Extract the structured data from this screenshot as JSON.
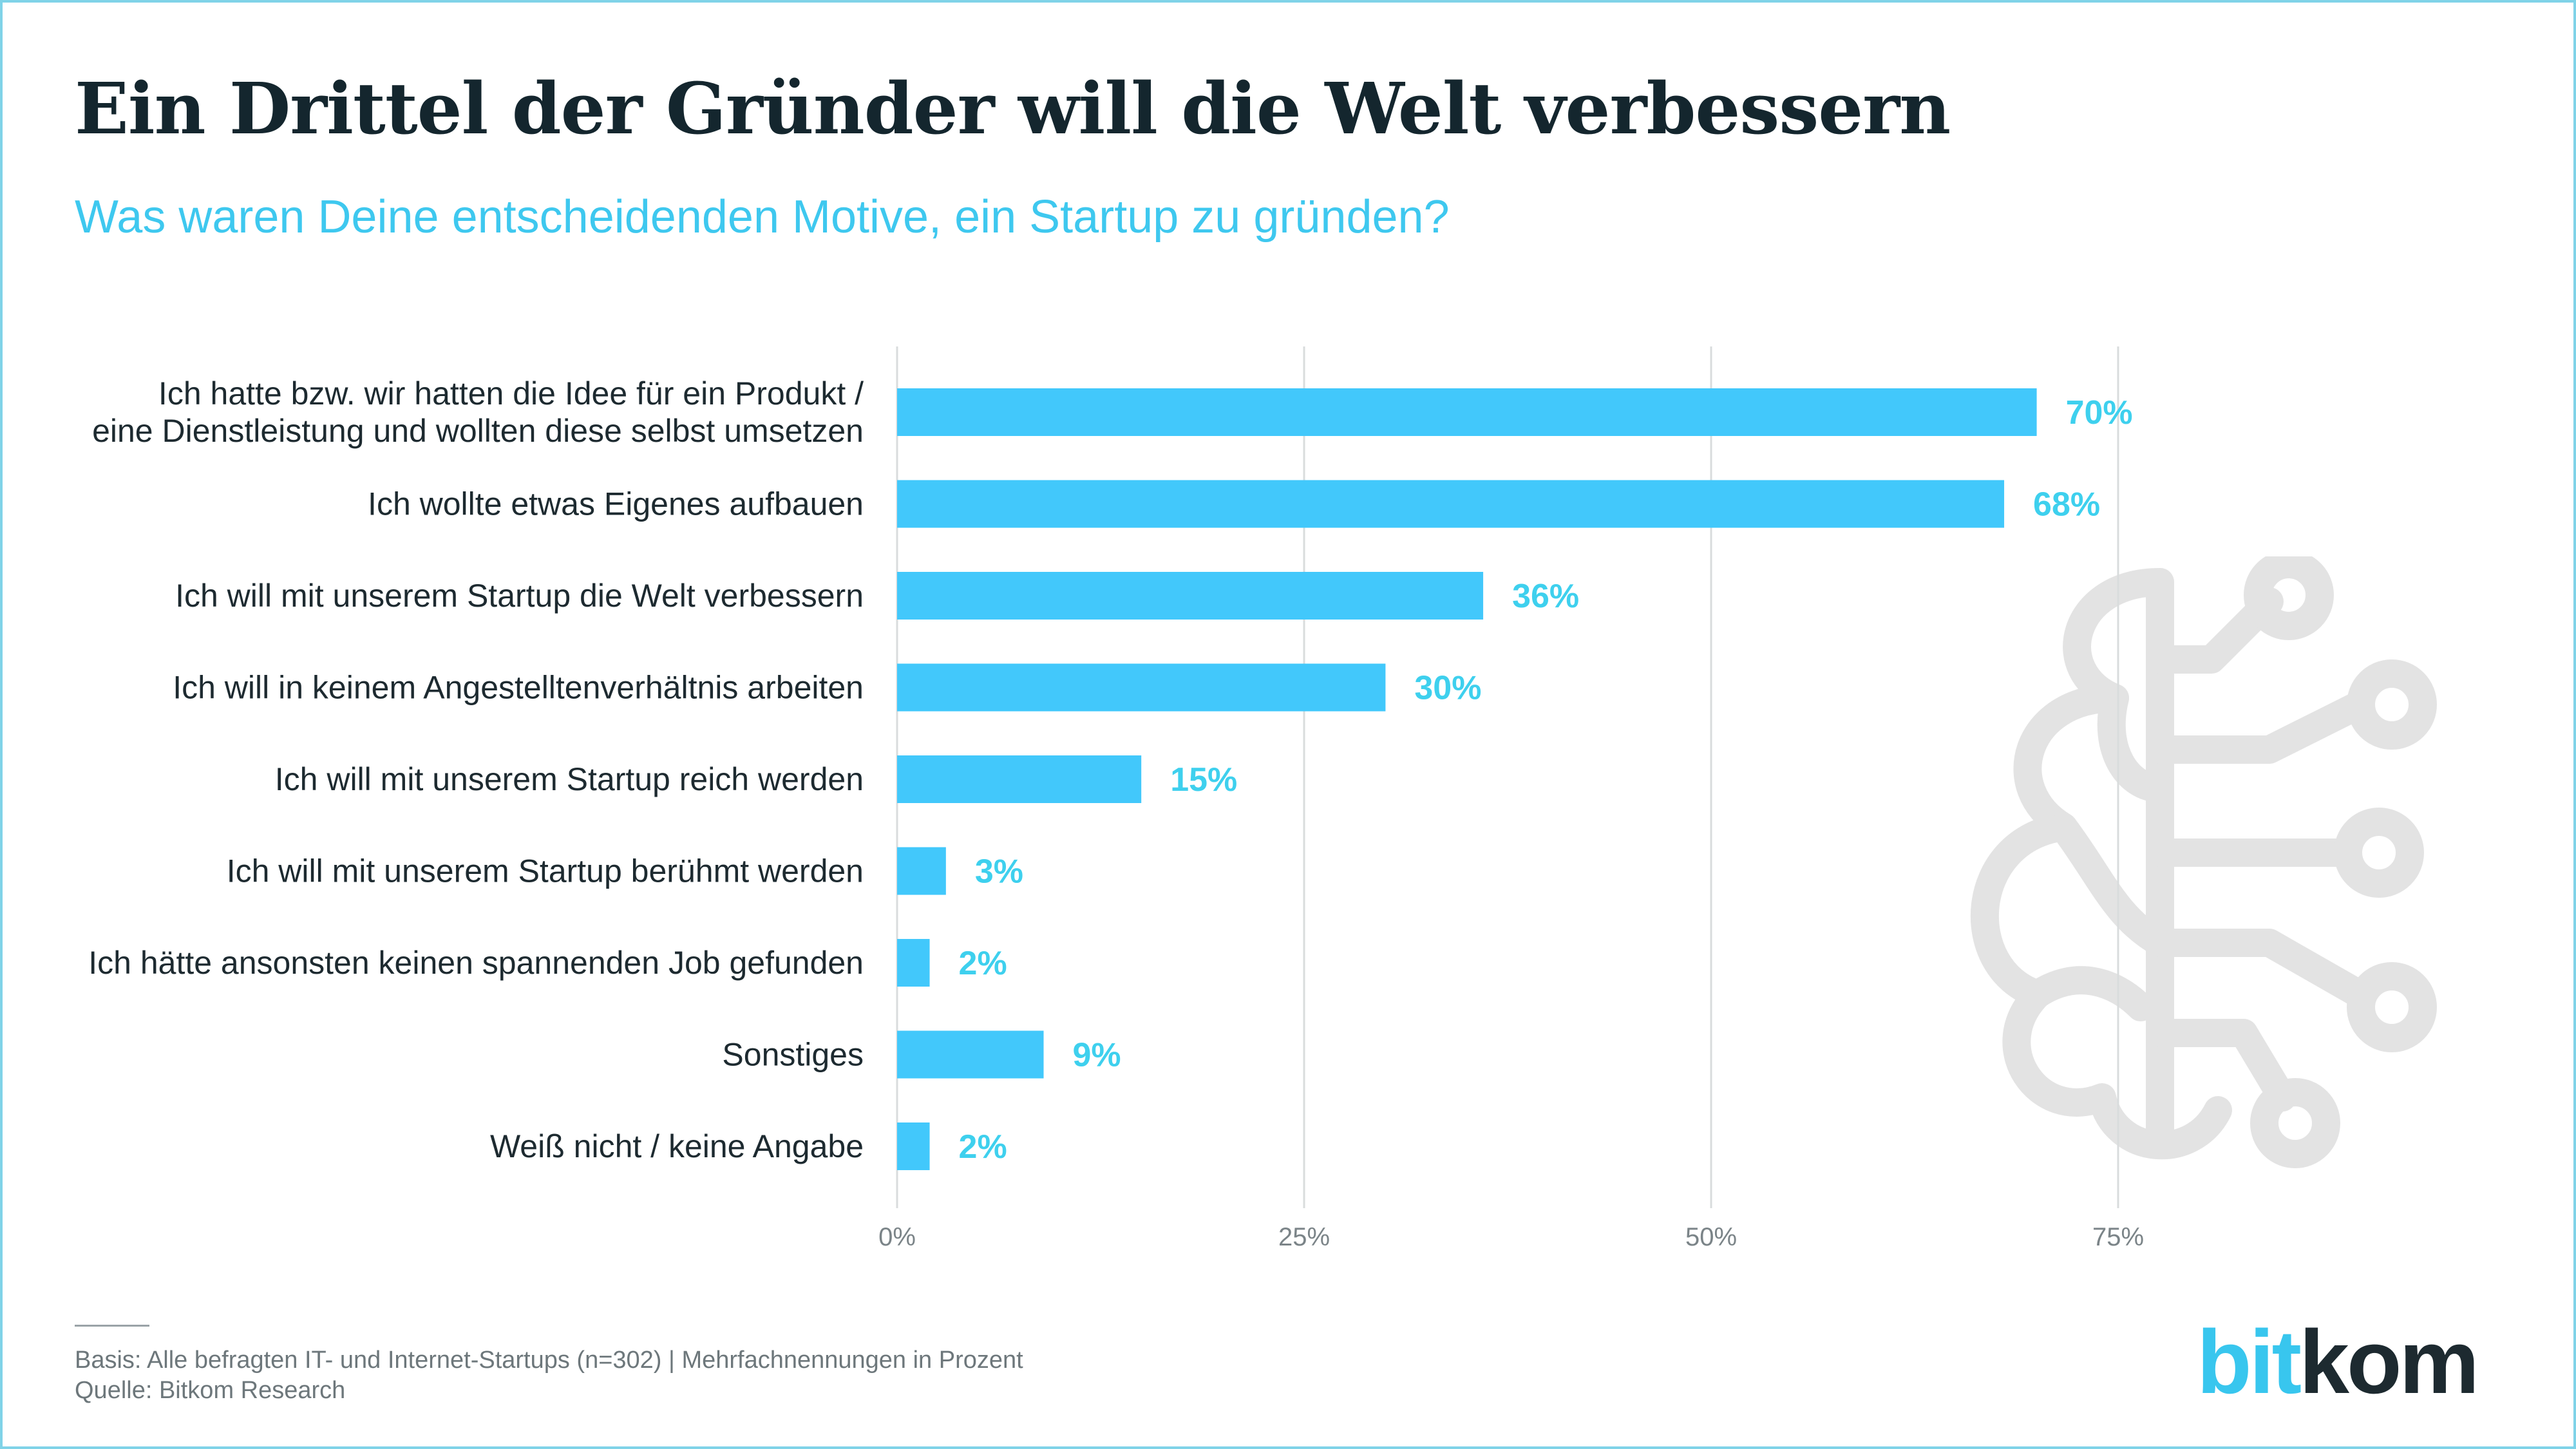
{
  "title": "Ein Drittel der Gründer will die Welt verbessern",
  "subtitle": "Was waren Deine entscheidenden Motive, ein Startup zu gründen?",
  "footer": {
    "basis": "Basis: Alle befragten IT- und Internet-Startups (n=302) | Mehrfachnennungen in Prozent",
    "source": "Quelle: Bitkom Research"
  },
  "logo": {
    "part1": "bit",
    "part2": "kom"
  },
  "decoration_icon": "brain-circuit-icon",
  "colors": {
    "bar": "#42c8fb",
    "value_label": "#3ed0ee",
    "subtitle": "#3ec8ef",
    "title": "#14262e",
    "logo_accent": "#38c6ee",
    "border": "#7fd3e8",
    "icon": "#e3e3e3"
  },
  "chart_data": {
    "type": "bar",
    "orientation": "horizontal",
    "categories": [
      [
        "Ich hatte bzw. wir hatten die Idee für ein Produkt /",
        "eine Dienstleistung und wollten diese selbst umsetzen"
      ],
      [
        "Ich wollte etwas Eigenes aufbauen"
      ],
      [
        "Ich will mit unserem Startup die Welt verbessern"
      ],
      [
        "Ich will in keinem Angestelltenverhältnis arbeiten"
      ],
      [
        "Ich will mit unserem Startup reich werden"
      ],
      [
        "Ich will mit unserem Startup berühmt werden"
      ],
      [
        "Ich hätte ansonsten keinen spannenden Job gefunden"
      ],
      [
        "Sonstiges"
      ],
      [
        "Weiß nicht / keine Angabe"
      ]
    ],
    "values": [
      70,
      68,
      36,
      30,
      15,
      3,
      2,
      9,
      2
    ],
    "value_labels": [
      "70%",
      "68%",
      "36%",
      "30%",
      "15%",
      "3%",
      "2%",
      "9%",
      "2%"
    ],
    "xlim": [
      0,
      75
    ],
    "xticks": [
      0,
      25,
      50,
      75
    ],
    "xtick_labels": [
      "0%",
      "25%",
      "50%",
      "75%"
    ],
    "grid": true,
    "legend": "none"
  }
}
